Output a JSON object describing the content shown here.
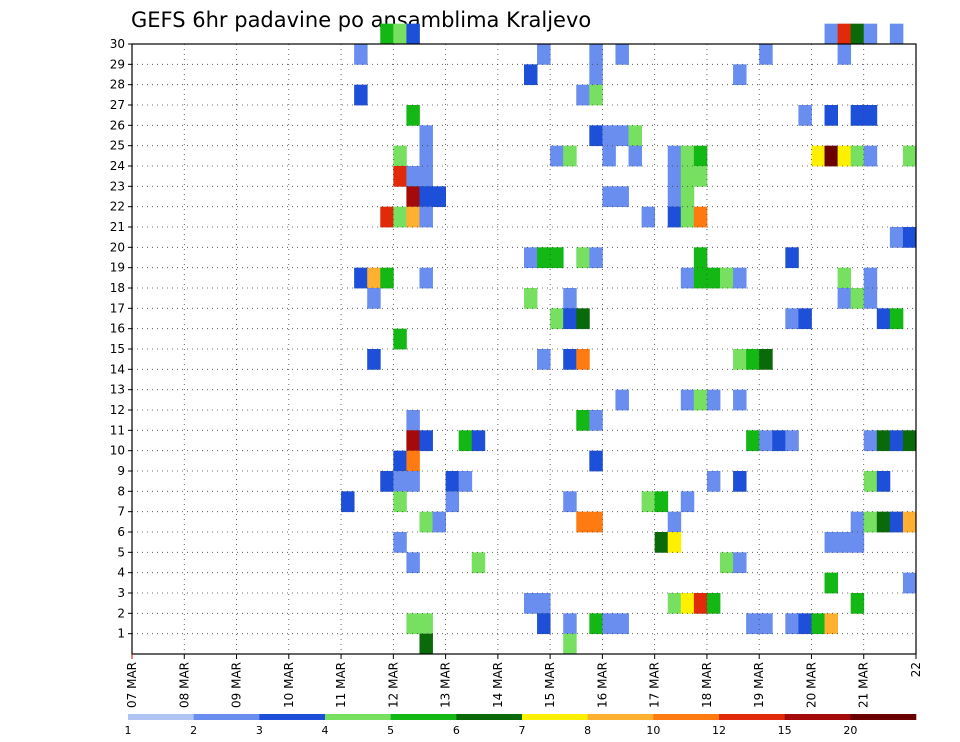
{
  "chart_data": {
    "type": "heatmap",
    "title": "GEFS 6hr padavine po ansamblima Kraljevo",
    "xlabel": "",
    "ylabel": "",
    "x_ticks": [
      "07 MAR",
      "08 MAR",
      "09 MAR",
      "10 MAR",
      "11 MAR",
      "12 MAR",
      "13 MAR",
      "14 MAR",
      "15 MAR",
      "16 MAR",
      "17 MAR",
      "18 MAR",
      "19 MAR",
      "20 MAR",
      "21 MAR",
      "22"
    ],
    "y_ticks": [
      "1",
      "2",
      "3",
      "4",
      "5",
      "6",
      "7",
      "8",
      "9",
      "10",
      "11",
      "12",
      "13",
      "14",
      "15",
      "16",
      "17",
      "18",
      "19",
      "20",
      "21",
      "22",
      "23",
      "24",
      "25",
      "26",
      "27",
      "28",
      "29",
      "30"
    ],
    "xlim": [
      0,
      60
    ],
    "ylim": [
      0,
      30
    ],
    "x_unit": "6-hour step from 07 MAR",
    "grid": true,
    "legend_position": "bottom",
    "legend_levels": [
      "1",
      "2",
      "3",
      "4",
      "5",
      "6",
      "7",
      "8",
      "10",
      "12",
      "15",
      "20"
    ],
    "legend_colors": [
      "#b0c4f4",
      "#6a8ef0",
      "#1e4fd8",
      "#78e060",
      "#14b814",
      "#0a6a0a",
      "#fff000",
      "#ffb030",
      "#ff7a10",
      "#e02a0a",
      "#a40a0a",
      "#6a0000"
    ],
    "cells": [
      [
        19,
        30,
        4
      ],
      [
        20,
        30,
        3
      ],
      [
        21,
        30,
        2
      ],
      [
        53,
        30,
        1
      ],
      [
        54,
        30,
        9
      ],
      [
        55,
        30,
        5
      ],
      [
        56,
        30,
        1
      ],
      [
        58,
        30,
        1
      ],
      [
        17,
        29,
        1
      ],
      [
        31,
        29,
        1
      ],
      [
        35,
        29,
        1
      ],
      [
        37,
        29,
        1
      ],
      [
        48,
        29,
        1
      ],
      [
        54,
        29,
        1
      ],
      [
        30,
        28,
        2
      ],
      [
        35,
        28,
        1
      ],
      [
        46,
        28,
        1
      ],
      [
        17,
        27,
        2
      ],
      [
        34,
        27,
        1
      ],
      [
        35,
        27,
        3
      ],
      [
        21,
        26,
        4
      ],
      [
        51,
        26,
        1
      ],
      [
        53,
        26,
        2
      ],
      [
        55,
        26,
        2
      ],
      [
        56,
        26,
        2
      ],
      [
        22,
        25,
        1
      ],
      [
        35,
        25,
        2
      ],
      [
        36,
        25,
        1
      ],
      [
        37,
        25,
        1
      ],
      [
        38,
        25,
        3
      ],
      [
        20,
        24,
        3
      ],
      [
        22,
        24,
        1
      ],
      [
        32,
        24,
        1
      ],
      [
        33,
        24,
        3
      ],
      [
        36,
        24,
        1
      ],
      [
        38,
        24,
        1
      ],
      [
        41,
        24,
        1
      ],
      [
        42,
        24,
        3
      ],
      [
        43,
        24,
        4
      ],
      [
        52,
        24,
        6
      ],
      [
        53,
        24,
        11
      ],
      [
        54,
        24,
        6
      ],
      [
        55,
        24,
        3
      ],
      [
        56,
        24,
        1
      ],
      [
        59,
        24,
        3
      ],
      [
        20,
        23,
        9
      ],
      [
        21,
        23,
        1
      ],
      [
        22,
        23,
        1
      ],
      [
        41,
        23,
        1
      ],
      [
        42,
        23,
        3
      ],
      [
        43,
        23,
        3
      ],
      [
        21,
        22,
        10
      ],
      [
        22,
        22,
        2
      ],
      [
        23,
        22,
        2
      ],
      [
        36,
        22,
        1
      ],
      [
        37,
        22,
        1
      ],
      [
        41,
        22,
        1
      ],
      [
        42,
        22,
        3
      ],
      [
        19,
        21,
        9
      ],
      [
        20,
        21,
        3
      ],
      [
        21,
        21,
        7
      ],
      [
        22,
        21,
        1
      ],
      [
        39,
        21,
        1
      ],
      [
        41,
        21,
        2
      ],
      [
        42,
        21,
        3
      ],
      [
        43,
        21,
        8
      ],
      [
        58,
        20,
        1
      ],
      [
        59,
        20,
        2
      ],
      [
        30,
        19,
        1
      ],
      [
        31,
        19,
        4
      ],
      [
        32,
        19,
        4
      ],
      [
        34,
        19,
        3
      ],
      [
        35,
        19,
        1
      ],
      [
        43,
        19,
        4
      ],
      [
        50,
        19,
        2
      ],
      [
        17,
        18,
        2
      ],
      [
        18,
        18,
        7
      ],
      [
        19,
        18,
        4
      ],
      [
        22,
        18,
        1
      ],
      [
        42,
        18,
        1
      ],
      [
        43,
        18,
        4
      ],
      [
        44,
        18,
        4
      ],
      [
        45,
        18,
        3
      ],
      [
        46,
        18,
        1
      ],
      [
        54,
        18,
        3
      ],
      [
        56,
        18,
        1
      ],
      [
        18,
        17,
        1
      ],
      [
        30,
        17,
        3
      ],
      [
        33,
        17,
        1
      ],
      [
        54,
        17,
        1
      ],
      [
        55,
        17,
        3
      ],
      [
        56,
        17,
        1
      ],
      [
        32,
        16,
        3
      ],
      [
        33,
        16,
        2
      ],
      [
        34,
        16,
        5
      ],
      [
        50,
        16,
        1
      ],
      [
        51,
        16,
        2
      ],
      [
        57,
        16,
        2
      ],
      [
        58,
        16,
        4
      ],
      [
        20,
        15,
        4
      ],
      [
        18,
        14,
        2
      ],
      [
        31,
        14,
        1
      ],
      [
        33,
        14,
        2
      ],
      [
        34,
        14,
        8
      ],
      [
        46,
        14,
        3
      ],
      [
        47,
        14,
        4
      ],
      [
        48,
        14,
        5
      ],
      [
        37,
        12,
        1
      ],
      [
        42,
        12,
        1
      ],
      [
        43,
        12,
        3
      ],
      [
        44,
        12,
        1
      ],
      [
        46,
        12,
        1
      ],
      [
        21,
        11,
        1
      ],
      [
        34,
        11,
        4
      ],
      [
        35,
        11,
        1
      ],
      [
        21,
        10,
        10
      ],
      [
        22,
        10,
        2
      ],
      [
        25,
        10,
        4
      ],
      [
        26,
        10,
        2
      ],
      [
        47,
        10,
        4
      ],
      [
        48,
        10,
        1
      ],
      [
        49,
        10,
        2
      ],
      [
        50,
        10,
        1
      ],
      [
        56,
        10,
        1
      ],
      [
        57,
        10,
        5
      ],
      [
        58,
        10,
        2
      ],
      [
        59,
        10,
        5
      ],
      [
        20,
        9,
        2
      ],
      [
        21,
        9,
        8
      ],
      [
        35,
        9,
        2
      ],
      [
        19,
        8,
        2
      ],
      [
        20,
        8,
        1
      ],
      [
        21,
        8,
        1
      ],
      [
        24,
        8,
        2
      ],
      [
        25,
        8,
        1
      ],
      [
        44,
        8,
        1
      ],
      [
        46,
        8,
        2
      ],
      [
        56,
        8,
        3
      ],
      [
        57,
        8,
        2
      ],
      [
        16,
        7,
        2
      ],
      [
        20,
        7,
        3
      ],
      [
        24,
        7,
        1
      ],
      [
        33,
        7,
        1
      ],
      [
        39,
        7,
        3
      ],
      [
        40,
        7,
        4
      ],
      [
        42,
        7,
        1
      ],
      [
        22,
        6,
        3
      ],
      [
        23,
        6,
        1
      ],
      [
        34,
        6,
        8
      ],
      [
        35,
        6,
        8
      ],
      [
        41,
        6,
        1
      ],
      [
        55,
        6,
        1
      ],
      [
        56,
        6,
        3
      ],
      [
        57,
        6,
        5
      ],
      [
        58,
        6,
        2
      ],
      [
        59,
        6,
        7
      ],
      [
        20,
        5,
        1
      ],
      [
        40,
        5,
        5
      ],
      [
        41,
        5,
        6
      ],
      [
        53,
        5,
        1
      ],
      [
        54,
        5,
        1
      ],
      [
        55,
        5,
        1
      ],
      [
        21,
        4,
        1
      ],
      [
        26,
        4,
        3
      ],
      [
        45,
        4,
        3
      ],
      [
        46,
        4,
        1
      ],
      [
        53,
        3,
        4
      ],
      [
        59,
        3,
        1
      ],
      [
        30,
        2,
        1
      ],
      [
        31,
        2,
        1
      ],
      [
        41,
        2,
        3
      ],
      [
        42,
        2,
        6
      ],
      [
        43,
        2,
        9
      ],
      [
        44,
        2,
        4
      ],
      [
        55,
        2,
        4
      ],
      [
        21,
        1,
        3
      ],
      [
        22,
        1,
        3
      ],
      [
        31,
        1,
        2
      ],
      [
        33,
        1,
        1
      ],
      [
        35,
        1,
        4
      ],
      [
        36,
        1,
        1
      ],
      [
        37,
        1,
        1
      ],
      [
        47,
        1,
        1
      ],
      [
        48,
        1,
        1
      ],
      [
        50,
        1,
        1
      ],
      [
        51,
        1,
        2
      ],
      [
        52,
        1,
        4
      ],
      [
        53,
        1,
        7
      ],
      [
        22,
        0,
        5
      ],
      [
        33,
        0,
        3
      ]
    ]
  }
}
